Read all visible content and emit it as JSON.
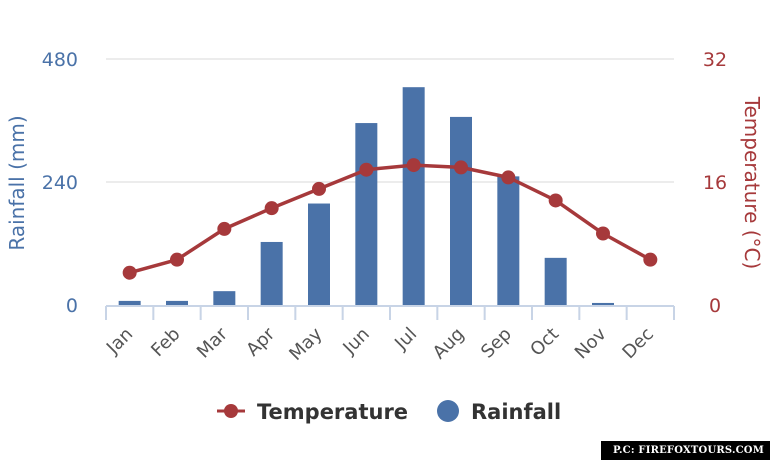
{
  "chart_data": {
    "type": "bar+line",
    "categories": [
      "Jan",
      "Feb",
      "Mar",
      "Apr",
      "May",
      "Jun",
      "Jul",
      "Aug",
      "Sep",
      "Oct",
      "Nov",
      "Dec"
    ],
    "series": [
      {
        "name": "Rainfall",
        "type": "bar",
        "axis": "left",
        "color": "#4a72a8",
        "values": [
          8,
          8,
          27,
          123,
          198,
          355,
          425,
          367,
          251,
          92,
          4,
          0
        ]
      },
      {
        "name": "Temperature",
        "type": "line",
        "axis": "right",
        "color": "#a6393b",
        "values": [
          4.2,
          5.9,
          9.9,
          12.6,
          15.1,
          17.6,
          18.2,
          17.9,
          16.6,
          13.6,
          9.3,
          5.9
        ]
      }
    ],
    "y_left": {
      "label": "Rainfall (mm)",
      "ylim": [
        0,
        480
      ],
      "ticks": [
        "0",
        "240",
        "480"
      ]
    },
    "y_right": {
      "label": "Temperature (°C)",
      "ylim": [
        0,
        32
      ],
      "ticks": [
        "0",
        "16",
        "32"
      ]
    },
    "grid": true,
    "legend": {
      "placement": "bottom-center",
      "entries": [
        "Temperature",
        "Rainfall"
      ]
    }
  },
  "credit": "P.C: FIREFOXTOURS.COM"
}
